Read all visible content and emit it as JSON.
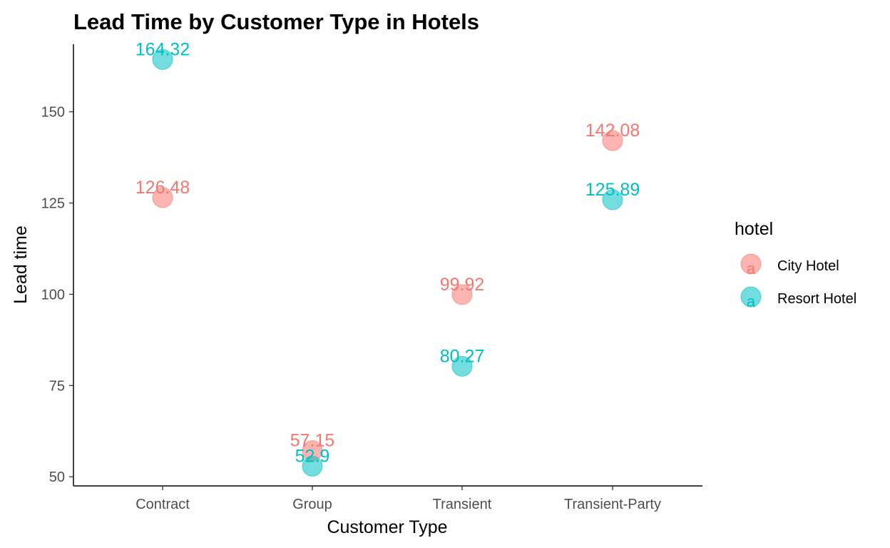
{
  "colors": {
    "city_hotel": "#F8766D",
    "resort_hotel": "#00BFC4",
    "axis": "#000000",
    "tick_text": "#4d4d4d"
  },
  "chart_data": {
    "type": "scatter",
    "title": "Lead Time by Customer Type in Hotels",
    "xlabel": "Customer Type",
    "ylabel": "Lead time",
    "categories": [
      "Contract",
      "Group",
      "Transient",
      "Transient-Party"
    ],
    "y_ticks": [
      50,
      75,
      100,
      125,
      150
    ],
    "ylim": [
      47.5,
      168.5
    ],
    "grid": false,
    "legend": {
      "title": "hotel",
      "position": "right",
      "key_glyph": "a"
    },
    "series": [
      {
        "name": "City Hotel",
        "color": "#F8766D",
        "values": [
          126.48,
          57.15,
          99.92,
          142.08
        ],
        "labels": [
          "126.48",
          "57.15",
          "99.92",
          "142.08"
        ]
      },
      {
        "name": "Resort Hotel",
        "color": "#00BFC4",
        "values": [
          164.32,
          52.9,
          80.27,
          125.89
        ],
        "labels": [
          "164.32",
          "52.9",
          "80.27",
          "125.89"
        ]
      }
    ]
  }
}
